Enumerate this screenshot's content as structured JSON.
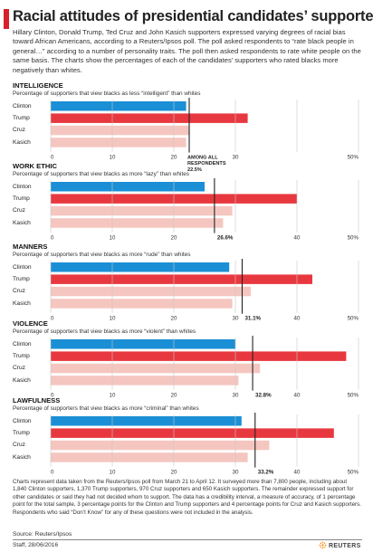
{
  "title": "Racial attitudes of presidential candidates’ supporters",
  "intro": "Hillary Clinton, Donald Trump, Ted Cruz and John Kasich supporters expressed varying degrees of racial bias toward African Americans, according to a Reuters/Ipsos poll. The poll asked respondents to “rate black people in general…” according to a number of personality traits. The poll then asked respondents to rate white people on the same basis. The charts show the percentages of each of the candidates’ supporters who rated blacks more negatively than whites.",
  "colors": {
    "accent": "#d8202a",
    "clinton": "#1a8fd6",
    "trump": "#e8383f",
    "cruz": "#f5c6c0",
    "kasich": "#f5c6c0",
    "marker": "#222222",
    "axis": "#999999"
  },
  "chart_data": [
    {
      "type": "bar",
      "title": "INTELLIGENCE",
      "subtitle": "Percentage of supporters that view blacks as less “intelligent” than whites",
      "categories": [
        "Clinton",
        "Trump",
        "Cruz",
        "Kasich"
      ],
      "values": [
        22,
        32,
        22.5,
        22
      ],
      "reference": {
        "value": 22.5,
        "label": "AMONG ALL RESPONDENTS 22.5%"
      },
      "xlim": [
        0,
        50
      ],
      "ticks": [
        "0",
        "10",
        "20",
        "30",
        "",
        "50%"
      ]
    },
    {
      "type": "bar",
      "title": "WORK ETHIC",
      "subtitle": "Percentage of supporters that view blacks as more “lazy” than whites",
      "categories": [
        "Clinton",
        "Trump",
        "Cruz",
        "Kasich"
      ],
      "values": [
        25,
        40,
        29.5,
        28
      ],
      "reference": {
        "value": 26.6,
        "label": "26.6%"
      },
      "xlim": [
        0,
        50
      ],
      "ticks": [
        "0",
        "10",
        "20",
        "",
        "40",
        "50%"
      ]
    },
    {
      "type": "bar",
      "title": "MANNERS",
      "subtitle": "Percentage of supporters that view blacks as more “rude” than whites",
      "categories": [
        "Clinton",
        "Trump",
        "Cruz",
        "Kasich"
      ],
      "values": [
        29,
        42.5,
        32.5,
        29.5
      ],
      "reference": {
        "value": 31.1,
        "label": "31.1%"
      },
      "xlim": [
        0,
        50
      ],
      "ticks": [
        "0",
        "10",
        "20",
        "30",
        "40",
        "50%"
      ]
    },
    {
      "type": "bar",
      "title": "VIOLENCE",
      "subtitle": "Percentage of supporters that view blacks as more “violent” than whites",
      "categories": [
        "Clinton",
        "Trump",
        "Cruz",
        "Kasich"
      ],
      "values": [
        30,
        48,
        34,
        30.5
      ],
      "reference": {
        "value": 32.8,
        "label": "32.8%"
      },
      "xlim": [
        0,
        50
      ],
      "ticks": [
        "0",
        "10",
        "20",
        "30",
        "40",
        "50%"
      ]
    },
    {
      "type": "bar",
      "title": "LAWFULNESS",
      "subtitle": "Percentage of supporters that view blacks as more “criminal” than whites",
      "categories": [
        "Clinton",
        "Trump",
        "Cruz",
        "Kasich"
      ],
      "values": [
        31,
        46,
        35.5,
        32
      ],
      "reference": {
        "value": 33.2,
        "label": "33.2%"
      },
      "xlim": [
        0,
        50
      ],
      "ticks": [
        "0",
        "10",
        "20",
        "30",
        "40",
        "50%"
      ]
    }
  ],
  "footnote": "Charts represent data taken from the Reuters/Ipsos poll from March 21 to April 12. It surveyed more than 7,800 people, including about 1,840 Clinton supporters, 1,370 Trump supporters, 970 Cruz supporters and 650 Kasich supporters. The remainder expressed support for other candidates or said they had not decided whom to support. The data has a credibility interval, a measure of accuracy, of 1 percentage point for the total sample, 3 percentage points for the Clinton and Trump supporters and 4 percentage points for Cruz and Kasich supporters. Respondents who said “Don’t Know” for any of these questions were not included in the analysis.",
  "source": "Source: Reuters/Ipsos",
  "credit": "Staff, 28/06/2016",
  "logo_text": "REUTERS"
}
